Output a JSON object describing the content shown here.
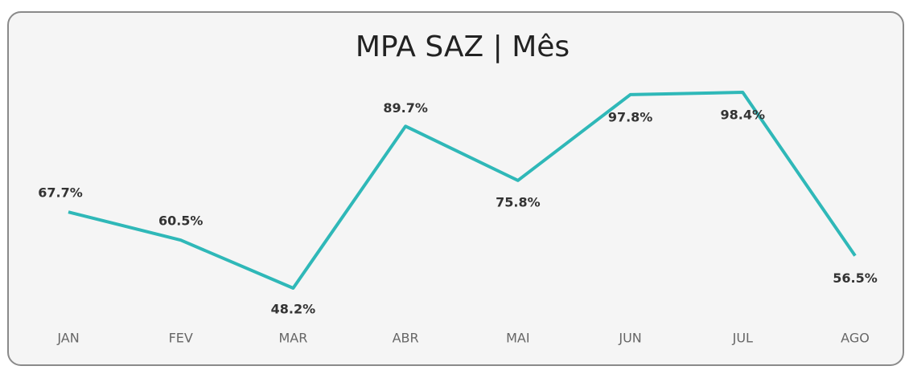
{
  "chart_data": {
    "type": "line",
    "title": "MPA SAZ | Mês",
    "categories": [
      "JAN",
      "FEV",
      "MAR",
      "ABR",
      "MAI",
      "JUN",
      "JUL",
      "AGO"
    ],
    "values": [
      67.7,
      60.5,
      48.2,
      89.7,
      75.8,
      97.8,
      98.4,
      56.5
    ],
    "value_labels": [
      "67.7%",
      "60.5%",
      "48.2%",
      "89.7%",
      "75.8%",
      "97.8%",
      "98.4%",
      "56.5%"
    ],
    "color": "#2fb8b8",
    "grid": false
  }
}
